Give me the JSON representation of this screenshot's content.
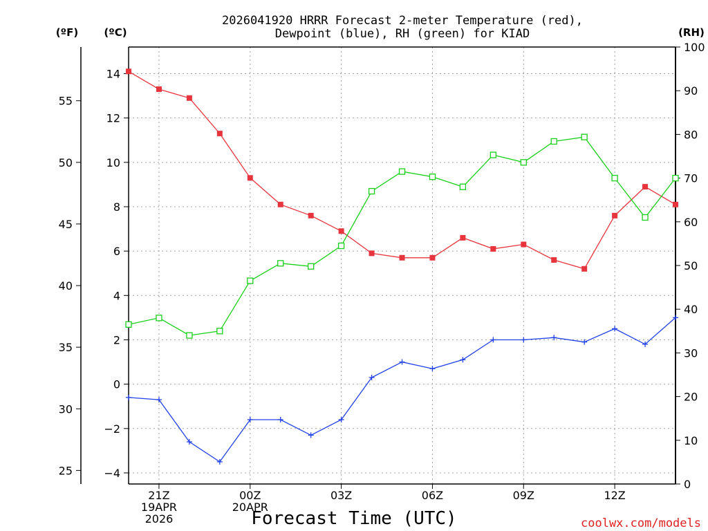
{
  "chart_data": {
    "type": "line",
    "title_lines": [
      "2026041920 HRRR Forecast 2-meter Temperature (red),",
      "Dewpoint (blue), RH (green) for KIAD"
    ],
    "xlabel": "Forecast Time (UTC)",
    "credit": "coolwx.com/models",
    "unit_labels": {
      "fahrenheit": "(ºF)",
      "celsius": "(ºC)",
      "rh": "(RH)"
    },
    "forecast_hours": [
      20,
      21,
      22,
      23,
      24,
      25,
      26,
      27,
      28,
      29,
      30,
      31,
      32,
      33,
      34,
      35,
      36,
      37,
      38
    ],
    "x_ticks": [
      {
        "hour": 21,
        "lines": [
          "21Z",
          "19APR",
          "2026"
        ]
      },
      {
        "hour": 24,
        "lines": [
          "00Z",
          "20APR"
        ]
      },
      {
        "hour": 27,
        "lines": [
          "03Z"
        ]
      },
      {
        "hour": 30,
        "lines": [
          "06Z"
        ]
      },
      {
        "hour": 33,
        "lines": [
          "09Z"
        ]
      },
      {
        "hour": 36,
        "lines": [
          "12Z"
        ]
      }
    ],
    "xlim": [
      20,
      38
    ],
    "celsius_axis": {
      "ylim": [
        -4.5,
        15.2
      ],
      "ticks": [
        -4,
        -2,
        0,
        2,
        4,
        6,
        8,
        10,
        12,
        14
      ],
      "tick_labels": [
        "−4",
        "−2",
        "0",
        "2",
        "4",
        "6",
        "8",
        "10",
        "12",
        "14"
      ]
    },
    "fahrenheit_axis": {
      "ticks": [
        25,
        30,
        35,
        40,
        45,
        50,
        55
      ],
      "tick_labels": [
        "25",
        "30",
        "35",
        "40",
        "45",
        "50",
        "55"
      ]
    },
    "rh_axis": {
      "ylim": [
        0,
        100
      ],
      "ticks": [
        0,
        10,
        20,
        30,
        40,
        50,
        60,
        70,
        80,
        90,
        100
      ],
      "tick_labels": [
        "0",
        "10",
        "20",
        "30",
        "40",
        "50",
        "60",
        "70",
        "80",
        "90",
        "100"
      ]
    },
    "series": [
      {
        "name": "Temperature",
        "axis": "celsius",
        "color": "#e8343c",
        "marker": "filled-square",
        "values": [
          14.1,
          13.3,
          12.9,
          11.3,
          9.3,
          8.1,
          7.6,
          6.9,
          5.9,
          5.7,
          5.7,
          6.6,
          6.1,
          6.3,
          5.6,
          5.2,
          7.6,
          8.9,
          8.1
        ]
      },
      {
        "name": "Dewpoint",
        "axis": "celsius",
        "color": "#2040e8",
        "marker": "plus",
        "values": [
          -0.6,
          -0.7,
          -2.6,
          -3.5,
          -1.6,
          -1.6,
          -2.3,
          -1.6,
          0.3,
          1.0,
          0.7,
          1.1,
          2.0,
          2.0,
          2.1,
          1.9,
          2.5,
          1.8,
          3.0
        ]
      },
      {
        "name": "RH",
        "axis": "rh",
        "color": "#18d018",
        "marker": "open-square",
        "values": [
          36.5,
          38,
          34,
          35,
          46.5,
          50.5,
          49.8,
          54.5,
          67,
          71.5,
          70.3,
          68,
          75.3,
          73.6,
          78.4,
          79.4,
          70,
          61,
          70
        ]
      }
    ]
  }
}
